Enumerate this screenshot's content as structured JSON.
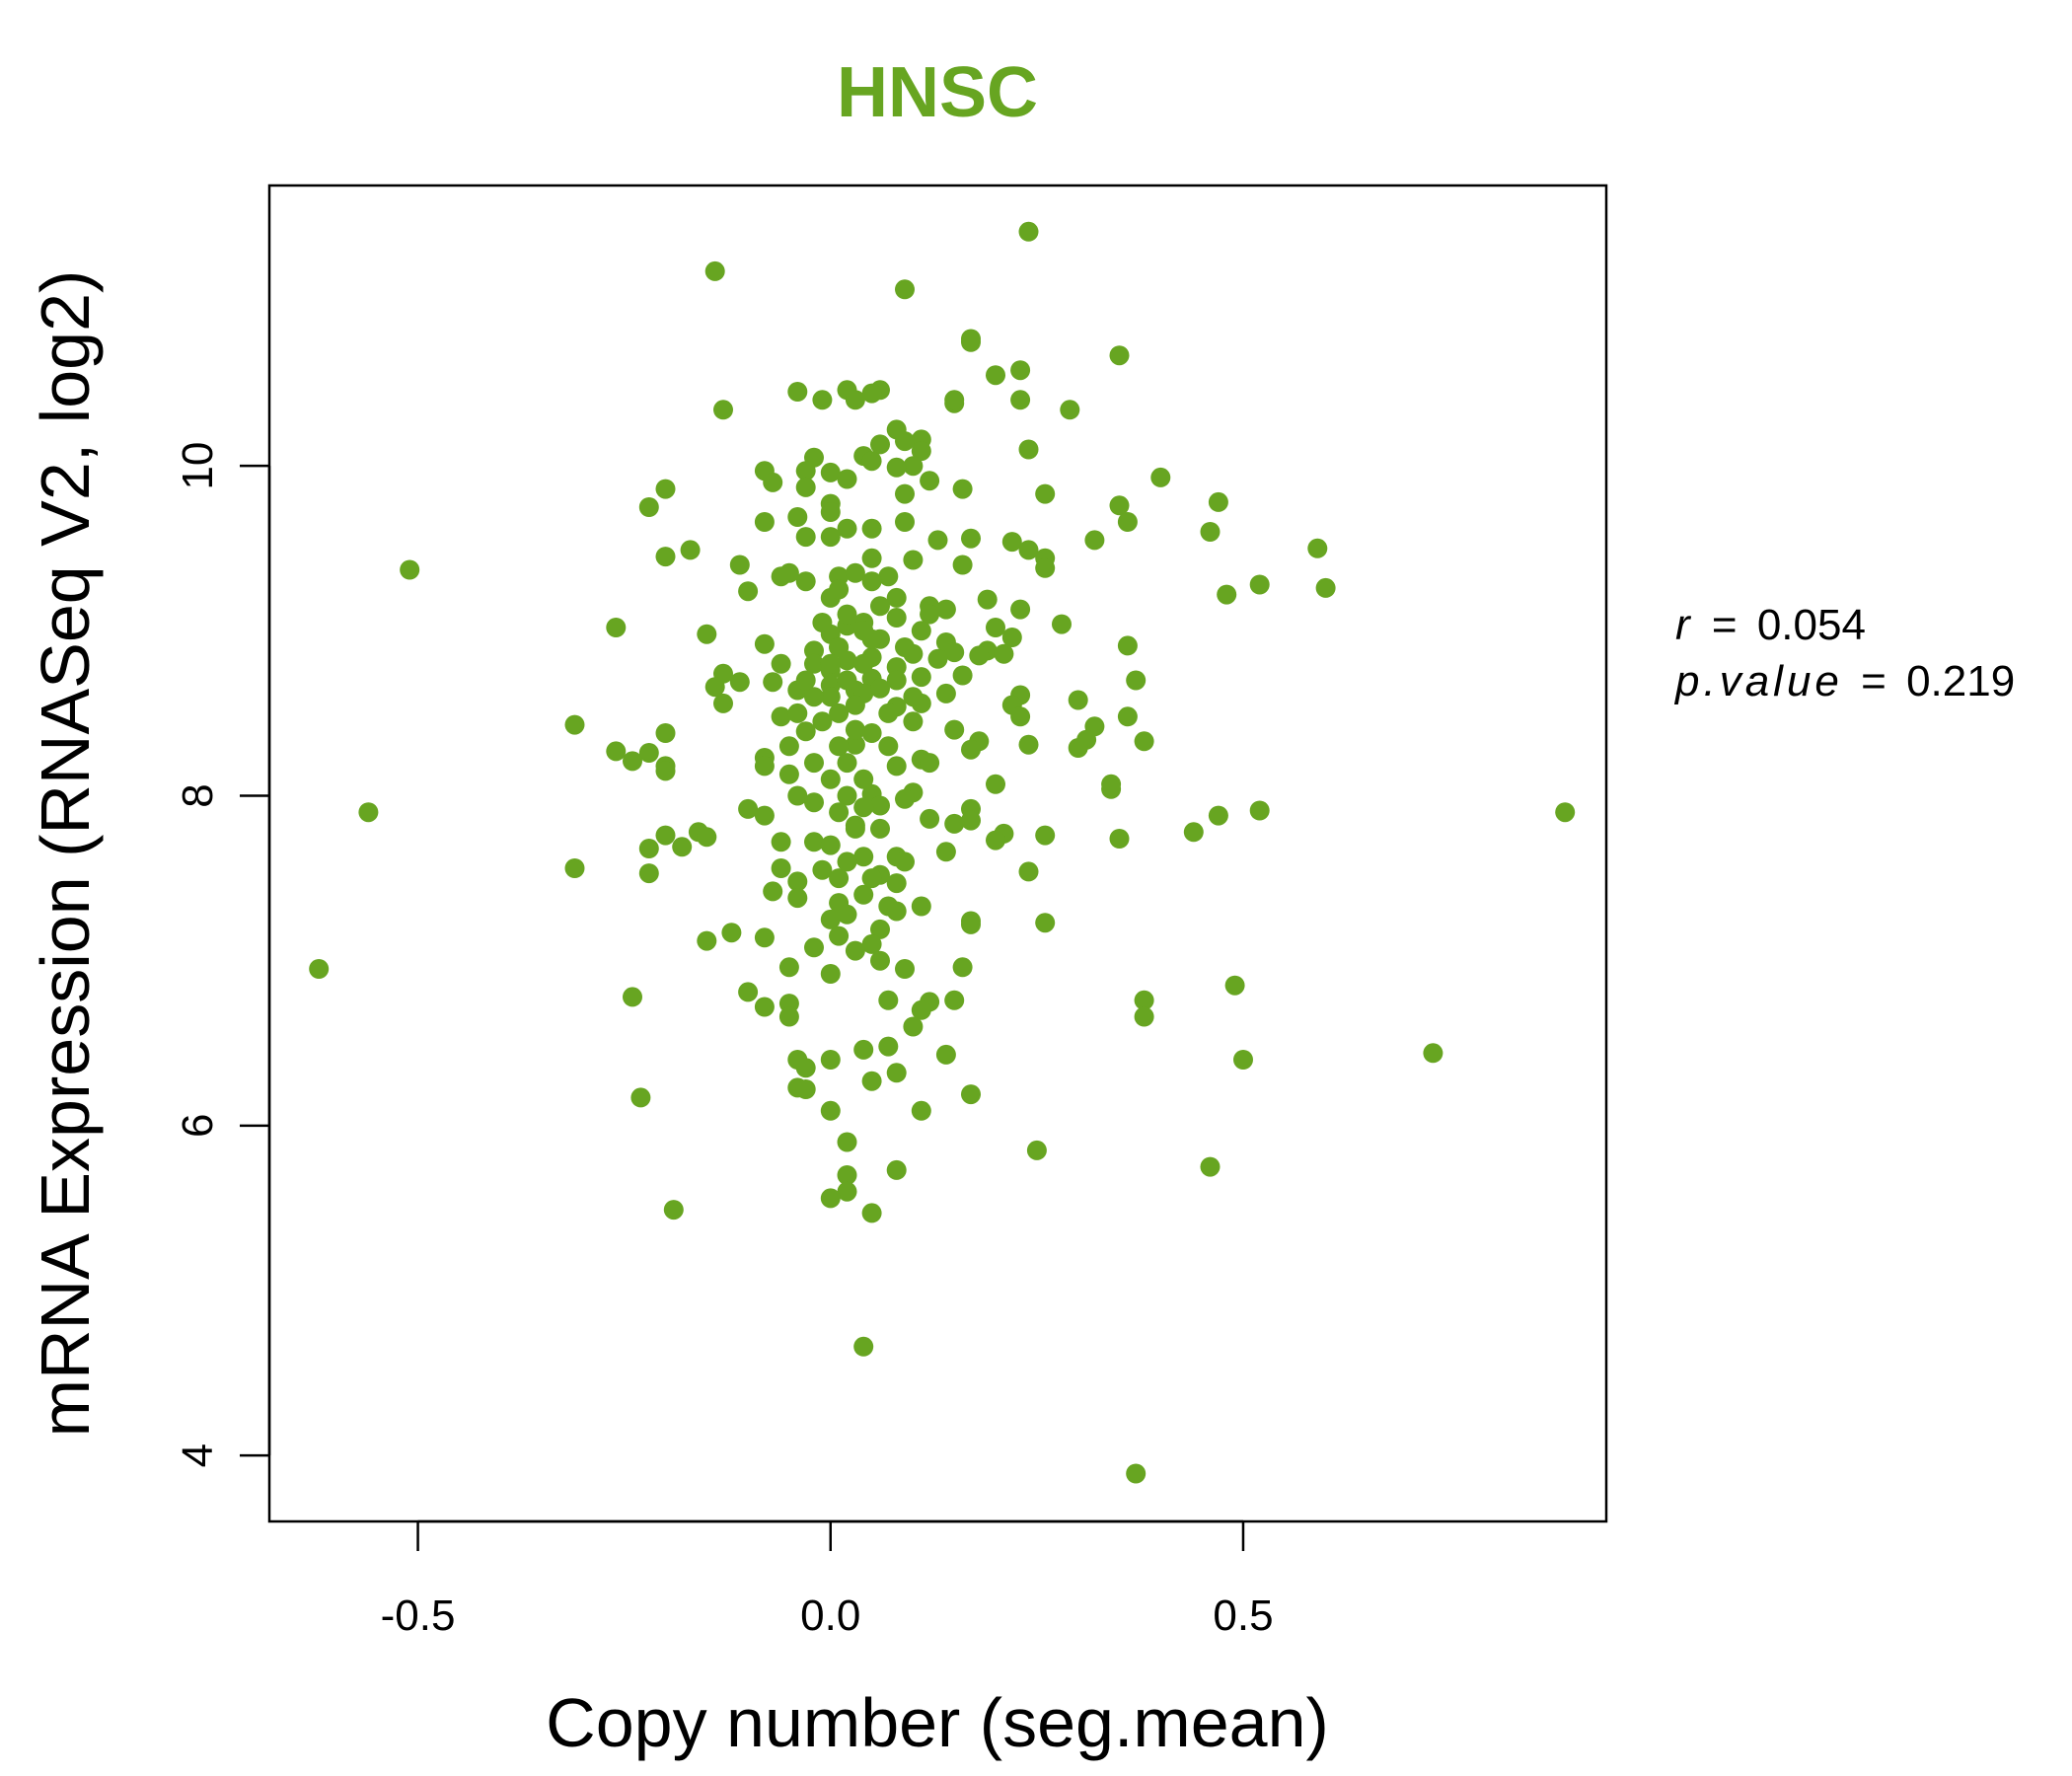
{
  "chart_data": {
    "type": "scatter",
    "title": "HNSC",
    "xlabel": "Copy number (seg.mean)",
    "ylabel": "mRNA Expression (RNASeq V2, log2)",
    "xlim": [
      -0.68,
      0.94
    ],
    "ylim": [
      3.6,
      11.7
    ],
    "xticks": [
      -0.5,
      0.0,
      0.5
    ],
    "xtick_labels": [
      "-0.5",
      "0.0",
      "0.5"
    ],
    "yticks": [
      4,
      6,
      8,
      10
    ],
    "ytick_labels": [
      "4",
      "6",
      "8",
      "10"
    ],
    "grid": false,
    "stats": {
      "r_label": "r",
      "r_value": "0.054",
      "p_label": "p.value",
      "p_value": "0.219"
    },
    "series": [
      {
        "marker_color": "#67a521",
        "points": [
          [
            0.24,
            11.42
          ],
          [
            -0.14,
            11.18
          ],
          [
            0.09,
            11.07
          ],
          [
            0.17,
            10.77
          ],
          [
            0.17,
            10.75
          ],
          [
            0.23,
            10.58
          ],
          [
            0.35,
            10.67
          ],
          [
            0.2,
            10.55
          ],
          [
            0.06,
            10.46
          ],
          [
            0.02,
            10.46
          ],
          [
            -0.04,
            10.45
          ],
          [
            0.05,
            10.44
          ],
          [
            -0.01,
            10.4
          ],
          [
            0.03,
            10.4
          ],
          [
            0.15,
            10.38
          ],
          [
            0.23,
            10.4
          ],
          [
            0.15,
            10.4
          ],
          [
            0.29,
            10.34
          ],
          [
            -0.13,
            10.34
          ],
          [
            0.08,
            10.22
          ],
          [
            0.11,
            10.16
          ],
          [
            0.09,
            10.15
          ],
          [
            0.06,
            10.13
          ],
          [
            0.24,
            10.1
          ],
          [
            0.11,
            10.09
          ],
          [
            0.04,
            10.06
          ],
          [
            -0.02,
            10.05
          ],
          [
            0.05,
            10.03
          ],
          [
            0.1,
            10.0
          ],
          [
            0.08,
            9.99
          ],
          [
            0.0,
            9.96
          ],
          [
            -0.03,
            9.97
          ],
          [
            -0.08,
            9.97
          ],
          [
            0.12,
            9.91
          ],
          [
            0.02,
            9.92
          ],
          [
            0.4,
            9.93
          ],
          [
            -0.07,
            9.9
          ],
          [
            -0.03,
            9.87
          ],
          [
            0.16,
            9.86
          ],
          [
            -0.2,
            9.86
          ],
          [
            0.26,
            9.83
          ],
          [
            0.09,
            9.83
          ],
          [
            0.0,
            9.77
          ],
          [
            -0.22,
            9.75
          ],
          [
            0.35,
            9.76
          ],
          [
            0.47,
            9.78
          ],
          [
            0.0,
            9.72
          ],
          [
            -0.04,
            9.69
          ],
          [
            0.09,
            9.66
          ],
          [
            -0.08,
            9.66
          ],
          [
            0.36,
            9.66
          ],
          [
            0.46,
            9.6
          ],
          [
            0.05,
            9.62
          ],
          [
            0.02,
            9.62
          ],
          [
            -0.03,
            9.57
          ],
          [
            0.0,
            9.57
          ],
          [
            0.32,
            9.55
          ],
          [
            0.17,
            9.56
          ],
          [
            0.22,
            9.54
          ],
          [
            0.13,
            9.55
          ],
          [
            0.24,
            9.49
          ],
          [
            0.59,
            9.5
          ],
          [
            -0.17,
            9.49
          ],
          [
            -0.2,
            9.45
          ],
          [
            0.26,
            9.44
          ],
          [
            0.1,
            9.43
          ],
          [
            0.05,
            9.44
          ],
          [
            0.16,
            9.4
          ],
          [
            -0.11,
            9.4
          ],
          [
            0.26,
            9.38
          ],
          [
            -0.51,
            9.37
          ],
          [
            -0.05,
            9.35
          ],
          [
            0.01,
            9.33
          ],
          [
            -0.06,
            9.33
          ],
          [
            0.07,
            9.33
          ],
          [
            -0.03,
            9.3
          ],
          [
            0.52,
            9.28
          ],
          [
            0.6,
            9.26
          ],
          [
            -0.1,
            9.24
          ],
          [
            0.48,
            9.22
          ],
          [
            0.19,
            9.19
          ],
          [
            0.12,
            9.15
          ],
          [
            0.14,
            9.13
          ],
          [
            0.23,
            9.13
          ],
          [
            0.12,
            9.1
          ],
          [
            0.08,
            9.08
          ],
          [
            0.04,
            9.05
          ],
          [
            0.02,
            9.03
          ],
          [
            -0.26,
            9.02
          ],
          [
            0.2,
            9.02
          ],
          [
            0.11,
            9.0
          ],
          [
            0.28,
            9.04
          ],
          [
            0.0,
            8.98
          ],
          [
            -0.15,
            8.98
          ],
          [
            0.22,
            8.96
          ],
          [
            0.06,
            8.95
          ],
          [
            0.14,
            8.93
          ],
          [
            -0.08,
            8.92
          ],
          [
            0.01,
            8.9
          ],
          [
            0.36,
            8.91
          ],
          [
            -0.02,
            8.88
          ],
          [
            0.19,
            8.88
          ],
          [
            0.15,
            8.87
          ],
          [
            0.1,
            8.86
          ],
          [
            0.18,
            8.85
          ],
          [
            0.21,
            8.86
          ],
          [
            0.13,
            8.83
          ],
          [
            0.05,
            8.84
          ],
          [
            0.02,
            8.82
          ],
          [
            -0.02,
            8.8
          ],
          [
            0.08,
            8.78
          ],
          [
            0.0,
            8.76
          ],
          [
            -0.13,
            8.74
          ],
          [
            0.16,
            8.73
          ],
          [
            0.11,
            8.72
          ],
          [
            0.05,
            8.71
          ],
          [
            0.37,
            8.7
          ],
          [
            -0.11,
            8.69
          ],
          [
            -0.07,
            8.69
          ],
          [
            0.0,
            8.67
          ],
          [
            -0.14,
            8.66
          ],
          [
            0.03,
            8.64
          ],
          [
            -0.04,
            8.64
          ],
          [
            0.04,
            8.62
          ],
          [
            0.14,
            8.62
          ],
          [
            0.23,
            8.61
          ],
          [
            0.3,
            8.58
          ],
          [
            -0.13,
            8.56
          ],
          [
            0.11,
            8.56
          ],
          [
            0.22,
            8.55
          ],
          [
            0.08,
            8.54
          ],
          [
            0.36,
            8.48
          ],
          [
            0.01,
            8.5
          ],
          [
            -0.06,
            8.48
          ],
          [
            0.23,
            8.48
          ],
          [
            -0.31,
            8.43
          ],
          [
            0.1,
            8.45
          ],
          [
            0.32,
            8.42
          ],
          [
            0.15,
            8.4
          ],
          [
            -0.03,
            8.39
          ],
          [
            0.05,
            8.38
          ],
          [
            -0.2,
            8.38
          ],
          [
            0.31,
            8.34
          ],
          [
            0.38,
            8.33
          ],
          [
            0.18,
            8.33
          ],
          [
            0.24,
            8.31
          ],
          [
            0.03,
            8.31
          ],
          [
            0.3,
            8.29
          ],
          [
            -0.26,
            8.27
          ],
          [
            -0.22,
            8.26
          ],
          [
            0.17,
            8.28
          ],
          [
            -0.08,
            8.23
          ],
          [
            0.11,
            8.22
          ],
          [
            -0.24,
            8.21
          ],
          [
            0.12,
            8.2
          ],
          [
            0.08,
            8.18
          ],
          [
            -0.2,
            8.18
          ],
          [
            -0.08,
            8.18
          ],
          [
            -0.2,
            8.15
          ],
          [
            -0.05,
            8.13
          ],
          [
            0.0,
            8.1
          ],
          [
            0.34,
            8.07
          ],
          [
            0.2,
            8.07
          ],
          [
            0.34,
            8.04
          ],
          [
            0.1,
            8.02
          ],
          [
            0.05,
            8.01
          ],
          [
            -0.04,
            8.0
          ],
          [
            0.09,
            7.98
          ],
          [
            -0.02,
            7.96
          ],
          [
            0.06,
            7.94
          ],
          [
            0.04,
            7.93
          ],
          [
            0.17,
            7.92
          ],
          [
            -0.1,
            7.92
          ],
          [
            0.52,
            7.91
          ],
          [
            -0.56,
            7.9
          ],
          [
            0.89,
            7.9
          ],
          [
            0.47,
            7.88
          ],
          [
            0.12,
            7.86
          ],
          [
            -0.08,
            7.88
          ],
          [
            0.17,
            7.85
          ],
          [
            0.15,
            7.83
          ],
          [
            0.03,
            7.82
          ],
          [
            0.06,
            7.8
          ],
          [
            -0.16,
            7.78
          ],
          [
            0.44,
            7.78
          ],
          [
            0.21,
            7.77
          ],
          [
            0.26,
            7.76
          ],
          [
            -0.2,
            7.76
          ],
          [
            -0.15,
            7.75
          ],
          [
            0.35,
            7.74
          ],
          [
            0.2,
            7.73
          ],
          [
            -0.06,
            7.72
          ],
          [
            -0.02,
            7.72
          ],
          [
            -0.18,
            7.69
          ],
          [
            -0.22,
            7.68
          ],
          [
            0.14,
            7.66
          ],
          [
            0.08,
            7.63
          ],
          [
            0.04,
            7.63
          ],
          [
            0.09,
            7.6
          ],
          [
            -0.06,
            7.56
          ],
          [
            -0.31,
            7.56
          ],
          [
            0.24,
            7.54
          ],
          [
            -0.22,
            7.53
          ],
          [
            0.06,
            7.52
          ],
          [
            0.01,
            7.5
          ],
          [
            -0.04,
            7.48
          ],
          [
            0.08,
            7.47
          ],
          [
            -0.07,
            7.42
          ],
          [
            0.04,
            7.4
          ],
          [
            -0.04,
            7.38
          ],
          [
            0.01,
            7.35
          ],
          [
            0.07,
            7.33
          ],
          [
            0.11,
            7.33
          ],
          [
            0.08,
            7.3
          ],
          [
            0.02,
            7.28
          ],
          [
            0.0,
            7.25
          ],
          [
            0.17,
            7.24
          ],
          [
            0.17,
            7.22
          ],
          [
            0.26,
            7.23
          ],
          [
            0.06,
            7.19
          ],
          [
            -0.12,
            7.17
          ],
          [
            0.01,
            7.15
          ],
          [
            -0.08,
            7.14
          ],
          [
            -0.15,
            7.12
          ],
          [
            0.05,
            7.1
          ],
          [
            -0.02,
            7.08
          ],
          [
            0.03,
            7.06
          ],
          [
            0.06,
            7.0
          ],
          [
            0.09,
            6.95
          ],
          [
            0.16,
            6.96
          ],
          [
            -0.05,
            6.96
          ],
          [
            -0.62,
            6.95
          ],
          [
            0.0,
            6.92
          ],
          [
            0.49,
            6.85
          ],
          [
            -0.1,
            6.81
          ],
          [
            -0.24,
            6.78
          ],
          [
            0.38,
            6.76
          ],
          [
            0.12,
            6.75
          ],
          [
            0.07,
            6.76
          ],
          [
            0.15,
            6.76
          ],
          [
            -0.05,
            6.74
          ],
          [
            -0.08,
            6.72
          ],
          [
            0.11,
            6.7
          ],
          [
            0.38,
            6.66
          ],
          [
            -0.05,
            6.66
          ],
          [
            0.1,
            6.6
          ],
          [
            0.07,
            6.48
          ],
          [
            0.04,
            6.46
          ],
          [
            0.73,
            6.44
          ],
          [
            0.14,
            6.43
          ],
          [
            -0.04,
            6.4
          ],
          [
            0.0,
            6.4
          ],
          [
            0.5,
            6.4
          ],
          [
            -0.03,
            6.35
          ],
          [
            0.08,
            6.32
          ],
          [
            0.05,
            6.27
          ],
          [
            -0.04,
            6.23
          ],
          [
            -0.03,
            6.22
          ],
          [
            0.17,
            6.19
          ],
          [
            -0.23,
            6.17
          ],
          [
            0.0,
            6.09
          ],
          [
            0.11,
            6.09
          ],
          [
            0.02,
            5.9
          ],
          [
            0.25,
            5.85
          ],
          [
            0.46,
            5.75
          ],
          [
            0.08,
            5.73
          ],
          [
            0.02,
            5.7
          ],
          [
            0.02,
            5.6
          ],
          [
            0.0,
            5.56
          ],
          [
            -0.19,
            5.49
          ],
          [
            0.05,
            5.47
          ],
          [
            0.04,
            4.66
          ],
          [
            0.37,
            3.89
          ],
          [
            0.0,
            8.6
          ],
          [
            0.02,
            8.7
          ],
          [
            0.01,
            8.9
          ],
          [
            0.03,
            8.55
          ],
          [
            -0.01,
            8.45
          ],
          [
            0.04,
            8.8
          ],
          [
            0.02,
            9.1
          ],
          [
            0.0,
            9.2
          ],
          [
            0.05,
            8.95
          ],
          [
            0.06,
            8.65
          ],
          [
            -0.02,
            8.6
          ],
          [
            0.03,
            8.4
          ],
          [
            0.01,
            8.3
          ],
          [
            0.07,
            8.5
          ],
          [
            -0.03,
            8.7
          ],
          [
            0.02,
            8.2
          ],
          [
            0.04,
            9.0
          ],
          [
            0.0,
            8.8
          ],
          [
            0.08,
            8.7
          ],
          [
            -0.04,
            8.5
          ],
          [
            0.05,
            9.3
          ],
          [
            0.01,
            9.25
          ],
          [
            -0.01,
            9.05
          ],
          [
            0.06,
            9.15
          ],
          [
            0.03,
            9.35
          ],
          [
            0.09,
            8.9
          ],
          [
            0.02,
            8.0
          ],
          [
            0.01,
            7.9
          ],
          [
            0.04,
            8.1
          ],
          [
            -0.02,
            8.2
          ],
          [
            0.0,
            7.7
          ],
          [
            0.02,
            7.6
          ],
          [
            0.05,
            7.5
          ],
          [
            -0.01,
            7.55
          ],
          [
            0.03,
            7.8
          ],
          [
            -0.05,
            8.3
          ],
          [
            0.07,
            8.3
          ],
          [
            0.1,
            8.6
          ],
          [
            -0.06,
            8.8
          ],
          [
            0.08,
            9.2
          ]
        ]
      }
    ]
  }
}
